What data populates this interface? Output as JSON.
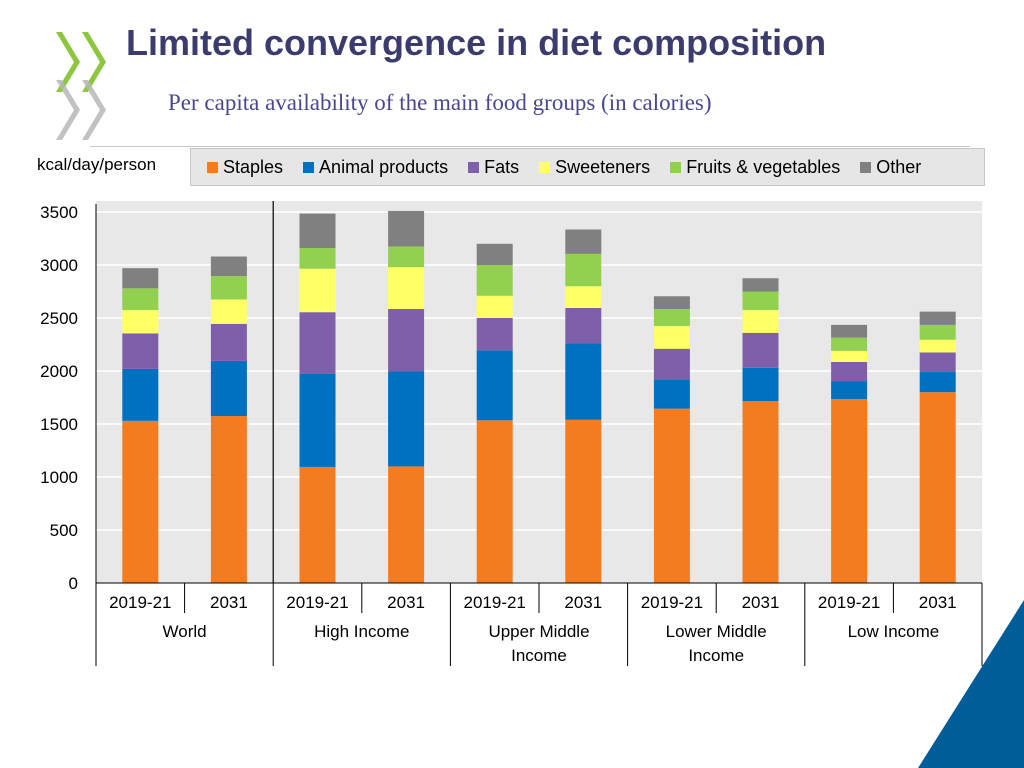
{
  "header": {
    "title": "Limited convergence in diet composition",
    "subtitle": "Per capita availability of the main food groups (in calories)"
  },
  "colors": {
    "title": "#3c3b6e",
    "subtitle": "#4a4790",
    "logo_green": "#8dc63f",
    "corner_blue": "#005d9a"
  },
  "chart_data": {
    "type": "stacked-bar",
    "title": "Per capita availability of the main food groups (in calories)",
    "ylabel": "kcal/day/person",
    "xlabel": "",
    "ylim": [
      0,
      3500
    ],
    "yticks": [
      0,
      500,
      1000,
      1500,
      2000,
      2500,
      3000,
      3500
    ],
    "grid": true,
    "legend_position": "top",
    "categories": [
      "2019-21",
      "2031",
      "2019-21",
      "2031",
      "2019-21",
      "2031",
      "2019-21",
      "2031",
      "2019-21",
      "2031"
    ],
    "groups": [
      {
        "label": "World",
        "members": [
          0,
          1
        ]
      },
      {
        "label": "High Income",
        "members": [
          2,
          3
        ]
      },
      {
        "label": "Upper Middle Income",
        "members": [
          4,
          5
        ]
      },
      {
        "label": "Lower Middle Income",
        "members": [
          6,
          7
        ]
      },
      {
        "label": "Low Income",
        "members": [
          8,
          9
        ]
      }
    ],
    "series": [
      {
        "name": "Staples",
        "color": "#f47b20",
        "values": [
          1530,
          1575,
          1095,
          1100,
          1535,
          1540,
          1645,
          1715,
          1735,
          1800
        ]
      },
      {
        "name": "Animal products",
        "color": "#0070c0",
        "values": [
          490,
          520,
          880,
          895,
          660,
          720,
          270,
          315,
          170,
          190
        ]
      },
      {
        "name": "Fats",
        "color": "#7f5faa",
        "values": [
          335,
          350,
          580,
          590,
          305,
          335,
          295,
          330,
          180,
          185
        ]
      },
      {
        "name": "Sweeteners",
        "color": "#ffff66",
        "values": [
          220,
          230,
          410,
          395,
          210,
          205,
          215,
          215,
          105,
          120
        ]
      },
      {
        "name": "Fruits & vegetables",
        "color": "#92d050",
        "values": [
          205,
          220,
          195,
          195,
          290,
          305,
          160,
          175,
          125,
          140
        ]
      },
      {
        "name": "Other",
        "color": "#808080",
        "values": [
          190,
          185,
          325,
          335,
          200,
          230,
          120,
          125,
          120,
          125
        ]
      }
    ]
  }
}
